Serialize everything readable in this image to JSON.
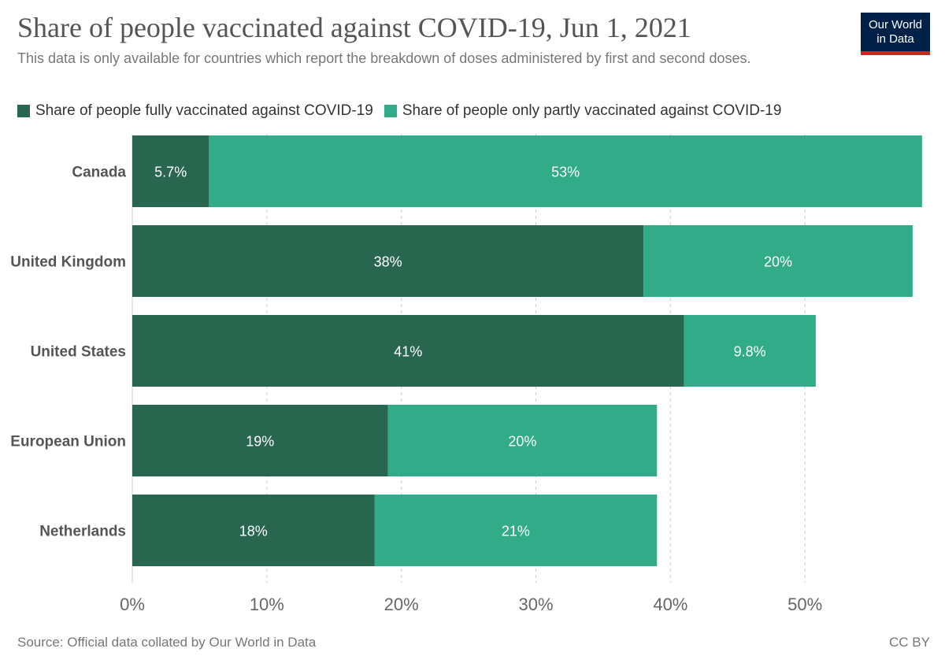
{
  "header": {
    "title": "Share of people vaccinated against COVID-19, Jun 1, 2021",
    "subtitle": "This data is only available for countries which report the breakdown of doses administered by first and second doses."
  },
  "logo": {
    "line1": "Our World",
    "line2": "in Data"
  },
  "footer": {
    "source": "Source: Official data collated by Our World in Data",
    "license": "CC BY"
  },
  "colors": {
    "fully": "#29664f",
    "partly": "#31ab88",
    "grid": "#cccccc",
    "axis_text": "#666666",
    "category_text": "#555555"
  },
  "chart_data": {
    "type": "bar",
    "orientation": "horizontal",
    "stacked": true,
    "title": "Share of people vaccinated against COVID-19, Jun 1, 2021",
    "categories": [
      "Canada",
      "United Kingdom",
      "United States",
      "European Union",
      "Netherlands"
    ],
    "series": [
      {
        "name": "Share of people fully vaccinated against COVID-19",
        "values": [
          5.7,
          38,
          41,
          19,
          18
        ],
        "labels": [
          "5.7%",
          "38%",
          "41%",
          "19%",
          "18%"
        ]
      },
      {
        "name": "Share of people only partly vaccinated against COVID-19",
        "values": [
          53,
          20,
          9.8,
          20,
          21
        ],
        "labels": [
          "53%",
          "20%",
          "9.8%",
          "20%",
          "21%"
        ]
      }
    ],
    "xlim": [
      0,
      58.3
    ],
    "xticks": [
      0,
      10,
      20,
      30,
      40,
      50
    ],
    "xtick_labels": [
      "0%",
      "10%",
      "20%",
      "30%",
      "40%",
      "50%"
    ],
    "grid": "vertical dashed",
    "legend_position": "top-left"
  }
}
